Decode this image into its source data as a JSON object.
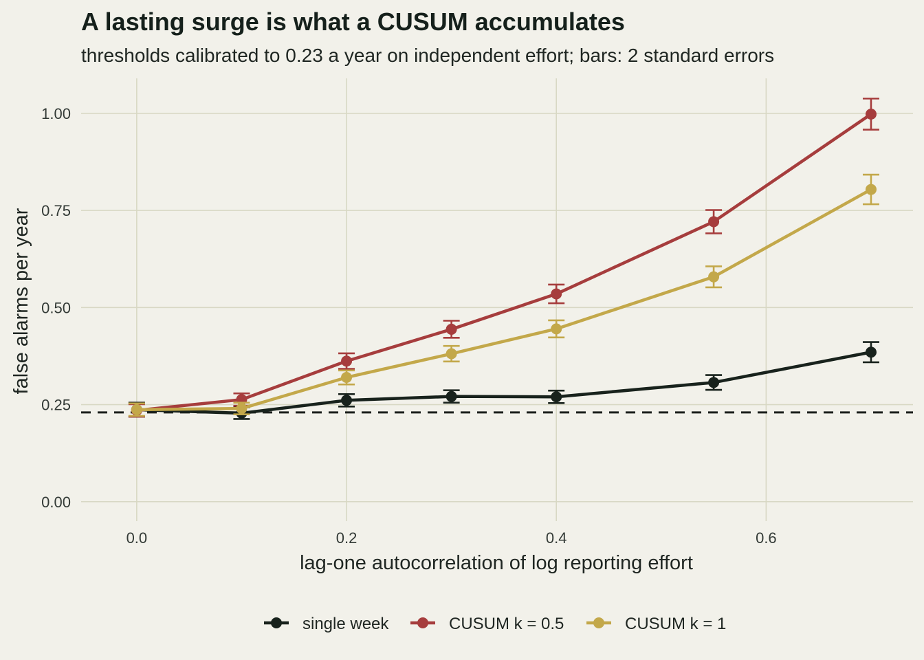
{
  "chart_data": {
    "type": "line",
    "title": "A lasting surge is what a CUSUM accumulates",
    "subtitle": "thresholds calibrated to 0.23 a year on independent effort; bars: 2 standard errors",
    "xlabel": "lag-one autocorrelation of log reporting effort",
    "ylabel": "false alarms per year",
    "xlim": [
      -0.053,
      0.74
    ],
    "ylim": [
      -0.05,
      1.09
    ],
    "x_ticks": [
      "0.0",
      "0.2",
      "0.4",
      "0.6"
    ],
    "x_tick_values": [
      0,
      0.2,
      0.4,
      0.6
    ],
    "y_ticks": [
      "0.00",
      "0.25",
      "0.50",
      "0.75",
      "1.00"
    ],
    "y_tick_values": [
      0,
      0.25,
      0.5,
      0.75,
      1.0
    ],
    "grid": true,
    "reference_line": {
      "y": 0.23,
      "style": "dashed",
      "color": "#1b1f1c"
    },
    "legend_position": "bottom",
    "x": [
      0,
      0.1,
      0.2,
      0.3,
      0.4,
      0.55,
      0.7
    ],
    "series": [
      {
        "name": "single week",
        "color": "#18221c",
        "values": [
          0.237,
          0.228,
          0.261,
          0.271,
          0.27,
          0.307,
          0.385
        ],
        "errors": [
          0.018,
          0.015,
          0.016,
          0.016,
          0.016,
          0.019,
          0.026
        ]
      },
      {
        "name": "CUSUM k = 0.5",
        "color": "#a63d3d",
        "values": [
          0.235,
          0.263,
          0.362,
          0.444,
          0.535,
          0.721,
          0.998
        ],
        "errors": [
          0.016,
          0.016,
          0.02,
          0.022,
          0.024,
          0.03,
          0.04
        ]
      },
      {
        "name": "CUSUM k = 1",
        "color": "#c3a84a",
        "values": [
          0.237,
          0.24,
          0.32,
          0.381,
          0.445,
          0.579,
          0.804
        ],
        "errors": [
          0.016,
          0.015,
          0.018,
          0.02,
          0.022,
          0.027,
          0.038
        ]
      }
    ]
  }
}
